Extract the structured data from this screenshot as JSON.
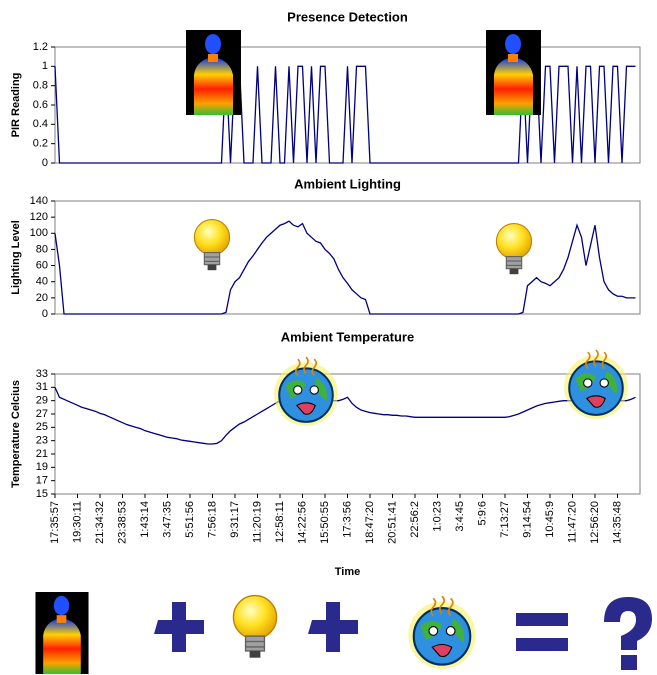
{
  "chart_data": [
    {
      "type": "line",
      "title": "Presence Detection",
      "ylabel": "PIR Reading",
      "color": "#000080",
      "x": [
        0,
        1,
        2,
        3,
        4,
        5,
        6,
        7,
        8,
        9,
        10,
        11,
        12,
        13,
        14,
        15,
        16,
        17,
        18,
        19,
        20,
        21,
        22,
        23,
        24,
        25,
        26,
        27,
        28,
        29,
        30,
        31,
        32,
        33,
        34,
        35,
        36,
        37,
        38,
        39,
        40,
        41,
        42,
        43,
        44,
        45,
        46,
        47,
        48,
        49,
        50,
        51,
        52,
        53,
        54,
        55,
        56,
        57,
        58,
        59,
        60,
        61,
        62,
        63,
        64,
        65,
        66,
        67,
        68,
        69,
        70,
        71,
        72,
        73,
        74,
        75,
        76,
        77,
        78,
        79,
        80,
        81,
        82,
        83,
        84,
        85,
        86,
        87,
        88,
        89,
        90,
        91,
        92,
        93,
        94,
        95,
        96,
        97,
        98,
        99,
        100,
        101,
        102,
        103,
        104,
        105,
        106,
        107,
        108,
        109,
        110,
        111,
        112,
        113,
        114,
        115,
        116,
        117,
        118,
        119,
        120,
        121,
        122,
        123,
        124,
        125,
        126,
        127,
        128,
        129
      ],
      "values": [
        1,
        0,
        0,
        0,
        0,
        0,
        0,
        0,
        0,
        0,
        0,
        0,
        0,
        0,
        0,
        0,
        0,
        0,
        0,
        0,
        0,
        0,
        0,
        0,
        0,
        0,
        0,
        0,
        0,
        0,
        0,
        0,
        0,
        0,
        0,
        0,
        0,
        0,
        1,
        0,
        1,
        1,
        0,
        0,
        0,
        1,
        0,
        0,
        0,
        1,
        0,
        0,
        1,
        0,
        1,
        1,
        0,
        1,
        0,
        1,
        1,
        0,
        0,
        0,
        0,
        1,
        0,
        1,
        1,
        1,
        0,
        0,
        0,
        0,
        0,
        0,
        0,
        0,
        0,
        0,
        0,
        0,
        0,
        0,
        0,
        0,
        0,
        0,
        0,
        0,
        0,
        0,
        0,
        0,
        0,
        0,
        0,
        0,
        0,
        0,
        0,
        0,
        0,
        0,
        1,
        0,
        1,
        1,
        0,
        1,
        1,
        0,
        1,
        1,
        1,
        0,
        1,
        0,
        1,
        1,
        0,
        1,
        1,
        0,
        1,
        1,
        0,
        1,
        1,
        1
      ],
      "xlim": [
        0,
        130
      ],
      "ylim": [
        0,
        1.2
      ],
      "yticks": [
        0,
        0.2,
        0.4,
        0.6,
        0.8,
        1,
        1.2
      ]
    },
    {
      "type": "line",
      "title": "Ambient Lighting",
      "ylabel": "Lighting Level",
      "color": "#000080",
      "x": [
        0,
        1,
        2,
        3,
        4,
        5,
        6,
        7,
        8,
        9,
        10,
        11,
        12,
        13,
        14,
        15,
        16,
        17,
        18,
        19,
        20,
        21,
        22,
        23,
        24,
        25,
        26,
        27,
        28,
        29,
        30,
        31,
        32,
        33,
        34,
        35,
        36,
        37,
        38,
        39,
        40,
        41,
        42,
        43,
        44,
        45,
        46,
        47,
        48,
        49,
        50,
        51,
        52,
        53,
        54,
        55,
        56,
        57,
        58,
        59,
        60,
        61,
        62,
        63,
        64,
        65,
        66,
        67,
        68,
        69,
        70,
        71,
        72,
        73,
        74,
        75,
        76,
        77,
        78,
        79,
        80,
        81,
        82,
        83,
        84,
        85,
        86,
        87,
        88,
        89,
        90,
        91,
        92,
        93,
        94,
        95,
        96,
        97,
        98,
        99,
        100,
        101,
        102,
        103,
        104,
        105,
        106,
        107,
        108,
        109,
        110,
        111,
        112,
        113,
        114,
        115,
        116,
        117,
        118,
        119,
        120,
        121,
        122,
        123,
        124,
        125,
        126,
        127,
        128,
        129
      ],
      "values": [
        100,
        60,
        0,
        0,
        0,
        0,
        0,
        0,
        0,
        0,
        0,
        0,
        0,
        0,
        0,
        0,
        0,
        0,
        0,
        0,
        0,
        0,
        0,
        0,
        0,
        0,
        0,
        0,
        0,
        0,
        0,
        0,
        0,
        0,
        0,
        0,
        0,
        0,
        2,
        30,
        40,
        45,
        55,
        65,
        72,
        80,
        88,
        95,
        100,
        105,
        110,
        112,
        115,
        110,
        108,
        112,
        100,
        95,
        90,
        88,
        80,
        75,
        68,
        55,
        45,
        38,
        30,
        25,
        20,
        18,
        0,
        0,
        0,
        0,
        0,
        0,
        0,
        0,
        0,
        0,
        0,
        0,
        0,
        0,
        0,
        0,
        0,
        0,
        0,
        0,
        0,
        0,
        0,
        0,
        0,
        0,
        0,
        0,
        0,
        0,
        0,
        0,
        0,
        0,
        2,
        35,
        40,
        45,
        40,
        38,
        35,
        40,
        45,
        55,
        70,
        90,
        110,
        95,
        60,
        85,
        110,
        70,
        40,
        30,
        25,
        22,
        22,
        20,
        20,
        20
      ],
      "xlim": [
        0,
        130
      ],
      "ylim": [
        0,
        140
      ],
      "yticks": [
        0,
        20,
        40,
        60,
        80,
        100,
        120,
        140
      ]
    },
    {
      "type": "line",
      "title": "Ambient Temperature",
      "ylabel": "Temperature Celcius",
      "xlabel": "Time",
      "color": "#000080",
      "x": [
        0,
        1,
        2,
        3,
        4,
        5,
        6,
        7,
        8,
        9,
        10,
        11,
        12,
        13,
        14,
        15,
        16,
        17,
        18,
        19,
        20,
        21,
        22,
        23,
        24,
        25,
        26,
        27,
        28,
        29,
        30,
        31,
        32,
        33,
        34,
        35,
        36,
        37,
        38,
        39,
        40,
        41,
        42,
        43,
        44,
        45,
        46,
        47,
        48,
        49,
        50,
        51,
        52,
        53,
        54,
        55,
        56,
        57,
        58,
        59,
        60,
        61,
        62,
        63,
        64,
        65,
        66,
        67,
        68,
        69,
        70,
        71,
        72,
        73,
        74,
        75,
        76,
        77,
        78,
        79,
        80,
        81,
        82,
        83,
        84,
        85,
        86,
        87,
        88,
        89,
        90,
        91,
        92,
        93,
        94,
        95,
        96,
        97,
        98,
        99,
        100,
        101,
        102,
        103,
        104,
        105,
        106,
        107,
        108,
        109,
        110,
        111,
        112,
        113,
        114,
        115,
        116,
        117,
        118,
        119,
        120,
        121,
        122,
        123,
        124,
        125,
        126,
        127,
        128,
        129
      ],
      "values": [
        31,
        29.5,
        29.2,
        28.9,
        28.6,
        28.3,
        28.0,
        27.8,
        27.6,
        27.4,
        27.1,
        26.9,
        26.6,
        26.3,
        26.0,
        25.7,
        25.4,
        25.2,
        25.0,
        24.8,
        24.5,
        24.3,
        24.1,
        23.9,
        23.7,
        23.5,
        23.4,
        23.3,
        23.1,
        23.0,
        22.9,
        22.8,
        22.7,
        22.6,
        22.5,
        22.5,
        22.6,
        23.0,
        23.8,
        24.5,
        25.0,
        25.5,
        25.8,
        26.2,
        26.6,
        27.0,
        27.4,
        27.8,
        28.2,
        28.6,
        29.0,
        29.3,
        29.6,
        29.8,
        30.0,
        30.0,
        29.8,
        29.6,
        29.4,
        29.2,
        29.0,
        29.0,
        29.0,
        29.0,
        29.2,
        29.5,
        28.6,
        28.0,
        27.6,
        27.4,
        27.2,
        27.1,
        27.0,
        26.9,
        26.9,
        26.8,
        26.8,
        26.7,
        26.7,
        26.6,
        26.5,
        26.5,
        26.5,
        26.5,
        26.5,
        26.5,
        26.5,
        26.5,
        26.5,
        26.5,
        26.5,
        26.5,
        26.5,
        26.5,
        26.5,
        26.5,
        26.5,
        26.5,
        26.5,
        26.5,
        26.5,
        26.6,
        26.8,
        27.0,
        27.3,
        27.6,
        27.9,
        28.2,
        28.4,
        28.6,
        28.7,
        28.8,
        28.9,
        29.0,
        29.0,
        29.0,
        29.0,
        29.0,
        29.0,
        29.0,
        29.0,
        29.0,
        29.0,
        29.0,
        29.0,
        29.0,
        29.0,
        29.0,
        29.2,
        29.5
      ],
      "xlim": [
        0,
        130
      ],
      "ylim": [
        15,
        33
      ],
      "yticks": [
        15,
        17,
        19,
        21,
        23,
        25,
        27,
        29,
        31,
        33
      ],
      "xticks": [
        {
          "value": 0,
          "label": "17:35:57"
        },
        {
          "value": 5,
          "label": "19:30:11"
        },
        {
          "value": 10,
          "label": "21:34:32"
        },
        {
          "value": 15,
          "label": "23:38:53"
        },
        {
          "value": 20,
          "label": "1:43:14"
        },
        {
          "value": 25,
          "label": "3:47:35"
        },
        {
          "value": 30,
          "label": "5:51:56"
        },
        {
          "value": 35,
          "label": "7:56:18"
        },
        {
          "value": 40,
          "label": "9:31:17"
        },
        {
          "value": 45,
          "label": "11:20:19"
        },
        {
          "value": 50,
          "label": "12:58:11"
        },
        {
          "value": 55,
          "label": "14:22:56"
        },
        {
          "value": 60,
          "label": "15:50:55"
        },
        {
          "value": 65,
          "label": "17:3:56"
        },
        {
          "value": 70,
          "label": "18:47:20"
        },
        {
          "value": 75,
          "label": "20:51:41"
        },
        {
          "value": 80,
          "label": "22:56:2"
        },
        {
          "value": 85,
          "label": "1:0:23"
        },
        {
          "value": 90,
          "label": "3:4:45"
        },
        {
          "value": 95,
          "label": "5:9:6"
        },
        {
          "value": 100,
          "label": "7:13:27"
        },
        {
          "value": 105,
          "label": "9:14:54"
        },
        {
          "value": 110,
          "label": "10:45:9"
        },
        {
          "value": 115,
          "label": "11:47:20"
        },
        {
          "value": 120,
          "label": "12:56:20"
        },
        {
          "value": 125,
          "label": "14:35:48"
        }
      ]
    }
  ]
}
